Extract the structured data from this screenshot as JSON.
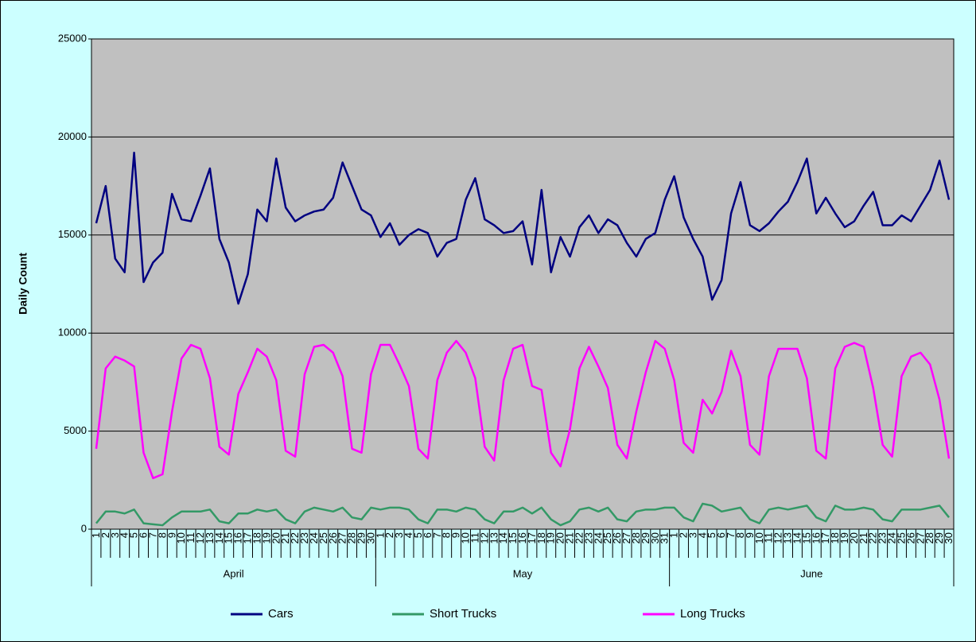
{
  "chart_data": {
    "type": "line",
    "ylabel": "Daily Count",
    "categories": [
      "1",
      "2",
      "3",
      "4",
      "5",
      "6",
      "7",
      "8",
      "9",
      "10",
      "11",
      "12",
      "13",
      "14",
      "15",
      "16",
      "17",
      "18",
      "19",
      "20",
      "21",
      "22",
      "23",
      "24",
      "25",
      "26",
      "27",
      "28",
      "29",
      "30",
      "1",
      "2",
      "3",
      "4",
      "5",
      "6",
      "7",
      "8",
      "9",
      "10",
      "11",
      "12",
      "13",
      "14",
      "15",
      "16",
      "17",
      "18",
      "19",
      "20",
      "21",
      "22",
      "23",
      "24",
      "25",
      "26",
      "27",
      "28",
      "29",
      "30",
      "31",
      "1",
      "2",
      "3",
      "4",
      "5",
      "6",
      "7",
      "8",
      "9",
      "10",
      "11",
      "12",
      "13",
      "14",
      "15",
      "16",
      "17",
      "18",
      "19",
      "20",
      "21",
      "22",
      "23",
      "24",
      "25",
      "26",
      "27",
      "28",
      "29",
      "30"
    ],
    "groups": [
      "April",
      "May",
      "June"
    ],
    "series": [
      {
        "name": "Cars",
        "color": "#000080",
        "values": [
          15600,
          17500,
          13800,
          13100,
          19200,
          12600,
          13600,
          14100,
          17100,
          15800,
          15700,
          17000,
          18400,
          14800,
          13600,
          11500,
          13000,
          16300,
          15700,
          18900,
          16400,
          15700,
          16000,
          16200,
          16300,
          16900,
          18700,
          17500,
          16300,
          16000,
          14900,
          15600,
          14500,
          15000,
          15300,
          15100,
          13900,
          14600,
          14800,
          16800,
          17900,
          15800,
          15500,
          15100,
          15200,
          15700,
          13500,
          17300,
          13100,
          14900,
          13900,
          15400,
          16000,
          15100,
          15800,
          15500,
          14600,
          13900,
          14800,
          15100,
          16800,
          18000,
          15900,
          14800,
          13900,
          11700,
          12700,
          16100,
          17700,
          15500,
          15200,
          15600,
          16200,
          16700,
          17700,
          18900,
          16100,
          16900,
          16100,
          15400,
          15700,
          16500,
          17200,
          15500,
          15500,
          16000,
          15700,
          16500,
          17300,
          18800,
          16800
        ]
      },
      {
        "name": "Short Trucks",
        "color": "#339966",
        "values": [
          300,
          900,
          900,
          800,
          1000,
          300,
          250,
          200,
          600,
          900,
          900,
          900,
          1000,
          400,
          300,
          800,
          800,
          1000,
          900,
          1000,
          500,
          300,
          900,
          1100,
          1000,
          900,
          1100,
          600,
          500,
          1100,
          1000,
          1100,
          1100,
          1000,
          500,
          300,
          1000,
          1000,
          900,
          1100,
          1000,
          500,
          300,
          900,
          900,
          1100,
          800,
          1100,
          500,
          200,
          400,
          1000,
          1100,
          900,
          1100,
          500,
          400,
          900,
          1000,
          1000,
          1100,
          1100,
          600,
          400,
          1300,
          1200,
          900,
          1000,
          1100,
          500,
          300,
          1000,
          1100,
          1000,
          1100,
          1200,
          600,
          400,
          1200,
          1000,
          1000,
          1100,
          1000,
          500,
          400,
          1000,
          1000,
          1000,
          1100,
          1200,
          600
        ]
      },
      {
        "name": "Long Trucks",
        "color": "#ff00ff",
        "values": [
          4100,
          8200,
          8800,
          8600,
          8300,
          3900,
          2600,
          2800,
          6000,
          8700,
          9400,
          9200,
          7700,
          4200,
          3800,
          6900,
          8000,
          9200,
          8800,
          7600,
          4000,
          3700,
          7900,
          9300,
          9400,
          9000,
          7800,
          4100,
          3900,
          7900,
          9400,
          9400,
          8400,
          7300,
          4100,
          3600,
          7600,
          9000,
          9600,
          9000,
          7700,
          4200,
          3500,
          7600,
          9200,
          9400,
          7300,
          7100,
          3900,
          3200,
          5100,
          8200,
          9300,
          8300,
          7200,
          4300,
          3600,
          6000,
          8000,
          9600,
          9200,
          7600,
          4400,
          3900,
          6600,
          5900,
          7000,
          9100,
          7800,
          4300,
          3800,
          7800,
          9200,
          9200,
          9200,
          7700,
          4000,
          3600,
          8200,
          9300,
          9500,
          9300,
          7200,
          4300,
          3700,
          7800,
          8800,
          9000,
          8400,
          6600,
          3600
        ]
      }
    ],
    "ylim": [
      0,
      25000
    ],
    "yticks": [
      0,
      5000,
      10000,
      15000,
      20000,
      25000
    ],
    "grid": true,
    "legend": "bottom"
  }
}
